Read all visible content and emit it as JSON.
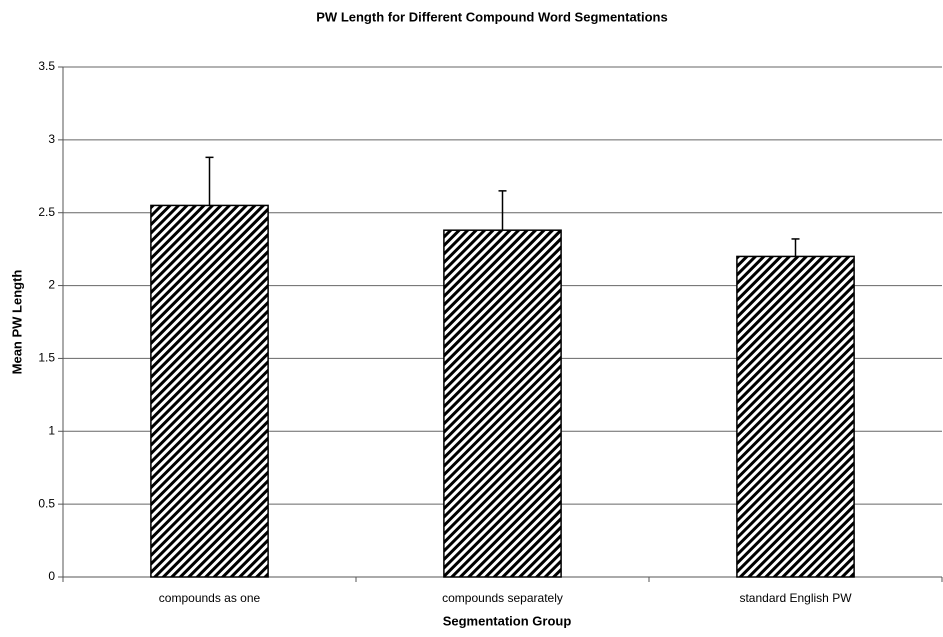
{
  "chart_data": {
    "type": "bar",
    "title": "PW Length for Different Compound Word Segmentations",
    "x_label": "Segmentation Group",
    "y_label": "Mean PW Length",
    "categories": [
      "compounds as one",
      "compounds separately",
      "standard English PW"
    ],
    "values": [
      2.55,
      2.38,
      2.2
    ],
    "errors": [
      0.33,
      0.27,
      0.12
    ],
    "color": "#000000",
    "pattern": "hatch",
    "ylim": [
      0,
      3.5
    ],
    "yticks": [
      0,
      0.5,
      1,
      1.5,
      2,
      2.5,
      3,
      3.5
    ],
    "grid": true
  }
}
